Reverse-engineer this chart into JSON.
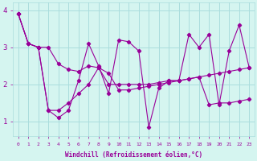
{
  "xlabel": "Windchill (Refroidissement éolien,°C)",
  "background_color": "#d5f5f0",
  "line_color": "#990099",
  "grid_color": "#aadddd",
  "xlim": [
    -0.5,
    23.5
  ],
  "ylim": [
    0.6,
    4.2
  ],
  "xticks": [
    0,
    1,
    2,
    3,
    4,
    5,
    6,
    7,
    8,
    9,
    10,
    11,
    12,
    13,
    14,
    15,
    16,
    17,
    18,
    19,
    20,
    21,
    22,
    23
  ],
  "yticks": [
    1,
    2,
    3,
    4
  ],
  "s1": [
    3.9,
    3.1,
    3.0,
    1.3,
    1.1,
    1.3,
    2.1,
    3.1,
    2.5,
    1.75,
    3.2,
    3.15,
    2.9,
    0.85,
    1.9,
    2.1,
    2.1,
    3.35,
    3.0,
    3.35,
    1.45,
    2.9,
    3.6,
    2.45
  ],
  "s2": [
    3.9,
    3.1,
    3.0,
    3.0,
    2.55,
    2.4,
    2.35,
    2.5,
    2.45,
    2.0,
    2.0,
    2.0,
    2.0,
    2.0,
    2.05,
    2.1,
    2.1,
    2.15,
    2.2,
    2.25,
    2.3,
    2.35,
    2.4,
    2.45
  ],
  "s3": [
    3.9,
    3.1,
    3.0,
    1.3,
    1.3,
    1.5,
    1.75,
    2.0,
    2.45,
    2.3,
    1.85,
    1.85,
    1.9,
    1.95,
    2.0,
    2.05,
    2.1,
    2.15,
    2.2,
    1.45,
    1.5,
    1.5,
    1.55,
    1.6
  ]
}
